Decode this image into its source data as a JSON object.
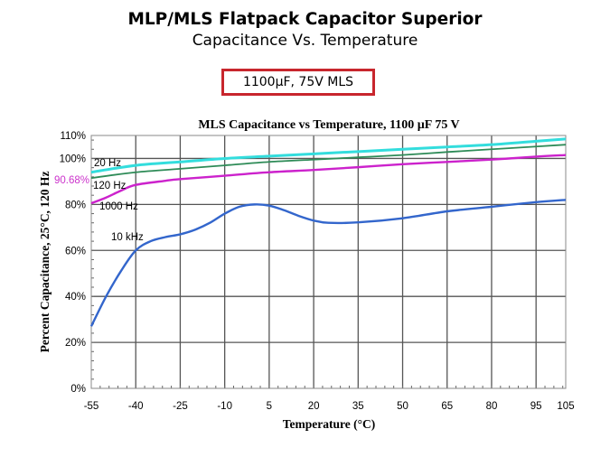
{
  "slide": {
    "title": "MLP/MLS Flatpack Capacitor Superior",
    "subtitle": "Capacitance Vs. Temperature",
    "badge": "1100µF, 75V MLS",
    "badge_border_color": "#c8262d"
  },
  "chart_data": {
    "type": "line",
    "title": "MLS Capacitance vs Temperature, 1100 µF 75 V",
    "xlabel": "Temperature (°C)",
    "ylabel": "Percent Capacitance, 25°C, 120 Hz",
    "xlim": [
      -55,
      105
    ],
    "ylim": [
      0,
      110
    ],
    "grid": true,
    "x_ticks": [
      -55,
      -40,
      -25,
      -10,
      5,
      20,
      35,
      50,
      65,
      80,
      95,
      105
    ],
    "x_tick_labels": [
      "-55",
      "-40",
      "-25",
      "-10",
      "5",
      "20",
      "35",
      "50",
      "65",
      "80",
      "95",
      "105"
    ],
    "y_ticks": [
      0,
      20,
      40,
      60,
      80,
      100,
      110
    ],
    "y_tick_labels": [
      "0%",
      "20%",
      "40%",
      "60%",
      "80%",
      "100%",
      "110%"
    ],
    "annotation": {
      "text": "90.68%",
      "y": 90.68,
      "color": "#cc33cc"
    },
    "series": [
      {
        "name": "20 Hz",
        "label": "20 Hz",
        "color": "#33dddd",
        "x": [
          -55,
          -40,
          -25,
          -10,
          5,
          20,
          35,
          50,
          65,
          80,
          95,
          105
        ],
        "y": [
          94,
          97,
          98.5,
          100,
          101,
          102,
          103,
          104,
          105,
          106,
          107.5,
          108.5
        ]
      },
      {
        "name": "120 Hz",
        "label": "120 Hz",
        "color": "#2e8b57",
        "x": [
          -55,
          -40,
          -25,
          -10,
          5,
          20,
          35,
          50,
          65,
          80,
          95,
          105
        ],
        "y": [
          91.5,
          94,
          95.5,
          97,
          98.5,
          99.5,
          100.5,
          101.5,
          102.8,
          104,
          105.2,
          106
        ]
      },
      {
        "name": "1000 Hz",
        "label": "1000 Hz",
        "color": "#cc22cc",
        "x": [
          -55,
          -50,
          -45,
          -40,
          -30,
          -25,
          -10,
          5,
          20,
          35,
          50,
          65,
          80,
          95,
          105
        ],
        "y": [
          80.5,
          83,
          86,
          88.5,
          90.3,
          91,
          92.5,
          94,
          95,
          96.2,
          97.5,
          98.5,
          99.5,
          100.8,
          101.5
        ]
      },
      {
        "name": "10 kHz",
        "label": "10 kHz",
        "color": "#3366cc",
        "x": [
          -55,
          -50,
          -45,
          -40,
          -35,
          -30,
          -25,
          -20,
          -15,
          -10,
          -5,
          0,
          5,
          10,
          15,
          20,
          25,
          35,
          50,
          65,
          80,
          95,
          105
        ],
        "y": [
          27,
          40,
          51,
          60,
          64,
          65.8,
          67,
          69,
          72,
          76,
          79,
          80,
          79.5,
          77.5,
          75,
          73,
          72,
          72.2,
          74,
          77,
          79,
          81,
          82
        ]
      }
    ]
  }
}
